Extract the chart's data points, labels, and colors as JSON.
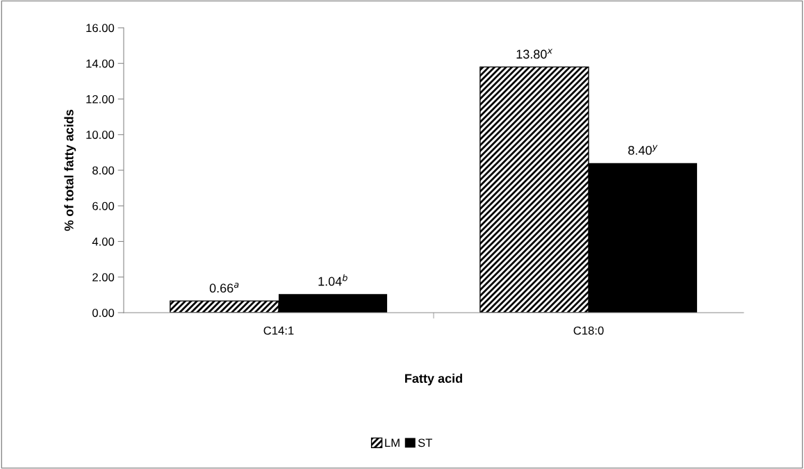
{
  "chart_data": {
    "type": "bar",
    "xlabel": "Fatty acid",
    "ylabel": "% of total fatty acids",
    "categories": [
      "C14:1",
      "C18:0"
    ],
    "series": [
      {
        "name": "LM",
        "color": "#000000",
        "values": [
          0.66,
          13.8
        ],
        "value_labels": [
          "0.66$^{a}$",
          "13.80$^{x}$"
        ]
      },
      {
        "name": "ST",
        "color": "#000000",
        "values": [
          1.04,
          8.4
        ],
        "value_labels": [
          "1.04$^{b}$",
          "8.40$^{y}$"
        ]
      }
    ],
    "ylim": [
      0,
      16
    ],
    "yticks": [
      {
        "value": 0,
        "label": "0.00"
      },
      {
        "value": 2,
        "label": "2.00"
      },
      {
        "value": 4,
        "label": "4.00"
      },
      {
        "value": 6,
        "label": "6.00"
      },
      {
        "value": 8,
        "label": "8.00"
      },
      {
        "value": 10,
        "label": "10.00"
      },
      {
        "value": 12,
        "label": "12.00"
      },
      {
        "value": 14,
        "label": "14.00"
      },
      {
        "value": 16,
        "label": "16.00"
      }
    ],
    "grid": false,
    "legend": "bottom"
  }
}
